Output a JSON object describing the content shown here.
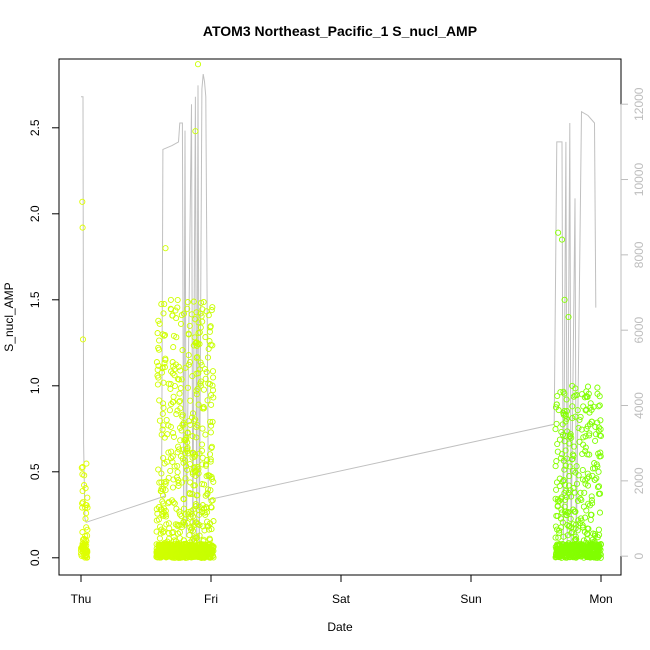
{
  "chart_data": {
    "type": "scatter",
    "title": "ATOM3 Northeast_Pacific_1 S_nucl_AMP",
    "xlabel": "Date",
    "ylabel": "S_nucl_AMP",
    "x_ticks": [
      "Thu",
      "Fri",
      "Sat",
      "Sun",
      "Mon"
    ],
    "xlim": [
      0,
      4.0
    ],
    "ylim": [
      -0.1,
      2.9
    ],
    "y_ticks": [
      0.0,
      0.5,
      1.0,
      1.5,
      2.0,
      2.5
    ],
    "y_tick_labels": [
      "0.0",
      "0.5",
      "1.0",
      "1.5",
      "2.0",
      "2.5"
    ],
    "y2_ticks": [
      0,
      2000,
      4000,
      6000,
      8000,
      10000,
      12000
    ],
    "y2_tick_labels": [
      "0",
      "2000",
      "4000",
      "6000",
      "8000",
      "10000",
      "12000"
    ],
    "y2lim": [
      -500,
      13200
    ],
    "color_gradient": {
      "start": "#dfff00",
      "end": "#7fff00"
    },
    "line_color": "#c0c0c0",
    "point_clusters": [
      {
        "x_start": 0.0,
        "x_end": 0.05,
        "y_max": 0.55,
        "count": 80,
        "outliers": [
          [
            0.01,
            2.07
          ],
          [
            0.012,
            1.92
          ],
          [
            0.015,
            1.27
          ]
        ]
      },
      {
        "x_start": 0.58,
        "x_end": 1.02,
        "y_max": 1.5,
        "count": 900,
        "outliers": [
          [
            0.9,
            2.87
          ],
          [
            0.88,
            2.48
          ],
          [
            0.65,
            1.8
          ],
          [
            0.6,
            1.21
          ]
        ]
      },
      {
        "x_start": 3.65,
        "x_end": 4.0,
        "y_max": 1.0,
        "count": 600,
        "outliers": [
          [
            3.67,
            1.89
          ],
          [
            3.7,
            1.85
          ],
          [
            3.72,
            1.5
          ],
          [
            3.75,
            1.4
          ]
        ]
      }
    ],
    "secondary_line": [
      [
        0.0,
        12200
      ],
      [
        0.015,
        12200
      ],
      [
        0.02,
        3000
      ],
      [
        0.03,
        1000
      ],
      [
        0.04,
        900
      ],
      [
        0.65,
        1600
      ],
      [
        0.62,
        1800
      ],
      [
        0.63,
        10800
      ],
      [
        0.7,
        10900
      ],
      [
        0.75,
        11000
      ],
      [
        0.76,
        11500
      ],
      [
        0.78,
        11500
      ],
      [
        0.79,
        800
      ],
      [
        0.8,
        11300
      ],
      [
        0.81,
        500
      ],
      [
        0.85,
        12000
      ],
      [
        0.86,
        300
      ],
      [
        0.88,
        12200
      ],
      [
        0.89,
        300
      ],
      [
        0.9,
        12500
      ],
      [
        0.91,
        200
      ],
      [
        0.93,
        12400
      ],
      [
        0.94,
        12800
      ],
      [
        0.95,
        12600
      ],
      [
        0.96,
        12200
      ],
      [
        0.98,
        1500
      ],
      [
        3.64,
        3500
      ],
      [
        3.66,
        11000
      ],
      [
        3.7,
        11000
      ],
      [
        3.71,
        200
      ],
      [
        3.73,
        11000
      ],
      [
        3.74,
        200
      ],
      [
        3.76,
        11500
      ],
      [
        3.77,
        200
      ],
      [
        3.8,
        9500
      ],
      [
        3.81,
        200
      ],
      [
        3.85,
        11800
      ],
      [
        3.9,
        11700
      ],
      [
        3.95,
        11500
      ],
      [
        3.96,
        6600
      ]
    ]
  }
}
